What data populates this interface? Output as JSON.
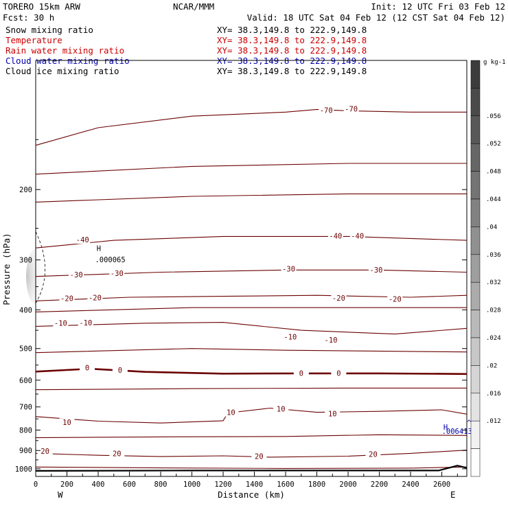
{
  "header": {
    "left_line1": "TORERO  15km ARW",
    "left_line2": "Fcst:  30 h",
    "center": "NCAR/MMM",
    "init": "Init: 12 UTC Fri 03 Feb 12",
    "valid": "Valid: 18 UTC Sat 04 Feb 12 (12 CST Sat 04 Feb 12)"
  },
  "fields": [
    {
      "name": "Snow mixing ratio",
      "xy": "XY=  38.3,149.8 to 222.9,149.8",
      "color": "#000000"
    },
    {
      "name": "Temperature",
      "xy": "XY=  38.3,149.8 to 222.9,149.8",
      "color": "#cc0000"
    },
    {
      "name": "Rain water mixing ratio",
      "xy": "XY=  38.3,149.8 to 222.9,149.8",
      "color": "#cc0000"
    },
    {
      "name": "Cloud water mixing ratio",
      "xy": "XY=  38.3,149.8 to 222.9,149.8",
      "color": "#0000aa"
    },
    {
      "name": "Cloud ice mixing ratio",
      "xy": "XY=  38.3,149.8 to 222.9,149.8",
      "color": "#000000"
    }
  ],
  "colors": {
    "contour": "#6b0000",
    "zero_contour": "#6b0000",
    "terrain": "#000000",
    "cloud_water": "#0000aa"
  },
  "chart_data": {
    "type": "contour",
    "xlabel": "Distance (km)",
    "ylabel": "Pressure (hPa)",
    "x_ticks": [
      0,
      200,
      400,
      600,
      800,
      1000,
      1200,
      1400,
      1600,
      1800,
      2000,
      2200,
      2400,
      2600
    ],
    "y_ticks": [
      200,
      300,
      400,
      500,
      600,
      700,
      800,
      900,
      1000
    ],
    "xlim": [
      0,
      2760
    ],
    "ylim": [
      1045,
      95
    ],
    "y_scale": "log",
    "x_end_labels": {
      "left": "W",
      "right": "E"
    },
    "temperature_contours": [
      {
        "label": "-70",
        "points": [
          [
            0,
            155
          ],
          [
            400,
            140
          ],
          [
            1000,
            131
          ],
          [
            1600,
            128
          ],
          [
            1800,
            126
          ],
          [
            2000,
            127
          ],
          [
            2400,
            128
          ],
          [
            2760,
            128
          ]
        ],
        "labels": [
          [
            1860,
            127,
            "-70"
          ],
          [
            2020,
            126,
            "-70"
          ]
        ]
      },
      {
        "label": "",
        "points": [
          [
            0,
            183
          ],
          [
            1000,
            175
          ],
          [
            2000,
            172
          ],
          [
            2760,
            172
          ]
        ],
        "labels": []
      },
      {
        "label": "",
        "points": [
          [
            0,
            215
          ],
          [
            1000,
            208
          ],
          [
            2000,
            205
          ],
          [
            2760,
            205
          ]
        ],
        "labels": []
      },
      {
        "label": "-40",
        "points": [
          [
            0,
            280
          ],
          [
            500,
            268
          ],
          [
            1200,
            262
          ],
          [
            2000,
            262
          ],
          [
            2760,
            268
          ]
        ],
        "labels": [
          [
            300,
            268,
            "-40"
          ],
          [
            1920,
            262,
            "-40"
          ],
          [
            2060,
            262,
            "-40"
          ]
        ]
      },
      {
        "label": "-30",
        "points": [
          [
            0,
            330
          ],
          [
            800,
            322
          ],
          [
            1600,
            318
          ],
          [
            2200,
            318
          ],
          [
            2760,
            322
          ]
        ],
        "labels": [
          [
            260,
            328,
            "-30"
          ],
          [
            520,
            325,
            "-30"
          ],
          [
            1620,
            317,
            "-30"
          ],
          [
            2180,
            319,
            "-30"
          ]
        ]
      },
      {
        "label": "-20",
        "points": [
          [
            0,
            380
          ],
          [
            600,
            372
          ],
          [
            1200,
            370
          ],
          [
            1800,
            368
          ],
          [
            2400,
            372
          ],
          [
            2760,
            368
          ]
        ],
        "labels": [
          [
            200,
            376,
            "-20"
          ],
          [
            380,
            374,
            "-20"
          ],
          [
            1940,
            375,
            "-20"
          ],
          [
            2300,
            377,
            "-20"
          ]
        ]
      },
      {
        "label": "",
        "points": [
          [
            0,
            405
          ],
          [
            1000,
            395
          ],
          [
            2000,
            395
          ],
          [
            2760,
            395
          ]
        ],
        "labels": []
      },
      {
        "label": "-10",
        "points": [
          [
            0,
            440
          ],
          [
            700,
            432
          ],
          [
            1200,
            430
          ],
          [
            1700,
            450
          ],
          [
            2300,
            460
          ],
          [
            2760,
            445
          ]
        ],
        "labels": [
          [
            160,
            433,
            "-10"
          ],
          [
            320,
            432,
            "-10"
          ],
          [
            1630,
            469,
            "-10"
          ],
          [
            1890,
            477,
            "-10"
          ]
        ]
      },
      {
        "label": "",
        "points": [
          [
            0,
            512
          ],
          [
            1000,
            500
          ],
          [
            1600,
            505
          ],
          [
            2760,
            510
          ]
        ],
        "labels": []
      },
      {
        "label": "0",
        "points": [
          [
            0,
            571
          ],
          [
            350,
            562
          ],
          [
            700,
            572
          ],
          [
            1200,
            578
          ],
          [
            1700,
            577
          ],
          [
            2200,
            577
          ],
          [
            2760,
            579
          ]
        ],
        "labels": [
          [
            330,
            560,
            "0"
          ],
          [
            540,
            568,
            "0"
          ],
          [
            1700,
            578,
            "0"
          ],
          [
            1940,
            578,
            "0"
          ]
        ]
      },
      {
        "label": "",
        "points": [
          [
            0,
            634
          ],
          [
            1000,
            630
          ],
          [
            2000,
            628
          ],
          [
            2760,
            628
          ]
        ],
        "labels": []
      },
      {
        "label": "10",
        "points": [
          [
            0,
            740
          ],
          [
            400,
            760
          ],
          [
            800,
            768
          ],
          [
            1200,
            758
          ],
          [
            1230,
            725
          ],
          [
            1500,
            705
          ],
          [
            1800,
            722
          ],
          [
            2200,
            718
          ],
          [
            2600,
            712
          ],
          [
            2760,
            730
          ]
        ],
        "labels": [
          [
            1250,
            725,
            "10"
          ],
          [
            1570,
            710,
            "10"
          ],
          [
            200,
            768,
            "10"
          ],
          [
            1900,
            731,
            "10"
          ]
        ]
      },
      {
        "label": "",
        "points": [
          [
            0,
            836
          ],
          [
            800,
            832
          ],
          [
            1600,
            830
          ],
          [
            2200,
            822
          ],
          [
            2760,
            825
          ]
        ],
        "labels": []
      },
      {
        "label": "20",
        "points": [
          [
            0,
            915
          ],
          [
            400,
            925
          ],
          [
            800,
            932
          ],
          [
            1200,
            928
          ],
          [
            1500,
            935
          ],
          [
            2000,
            930
          ],
          [
            2400,
            915
          ],
          [
            2760,
            898
          ]
        ],
        "labels": [
          [
            60,
            906,
            "20"
          ],
          [
            520,
            918,
            "20"
          ],
          [
            1430,
            934,
            "20"
          ],
          [
            2160,
            922,
            "20"
          ]
        ]
      },
      {
        "label": "",
        "points": [
          [
            0,
            990
          ],
          [
            800,
            995
          ],
          [
            1600,
            998
          ],
          [
            2400,
            996
          ],
          [
            2760,
            990
          ]
        ],
        "labels": []
      }
    ],
    "terrain": [
      [
        0,
        1012
      ],
      [
        1000,
        1010
      ],
      [
        2000,
        1010
      ],
      [
        2580,
        1010
      ],
      [
        2700,
        982
      ],
      [
        2760,
        995
      ]
    ],
    "annotations": [
      {
        "text": "H",
        "x": 390,
        "y": 285,
        "color": "#000000"
      },
      {
        "text": ".000065",
        "x": 380,
        "y": 304,
        "color": "#000000"
      },
      {
        "text": "H",
        "x": 2610,
        "y": 798,
        "color": "#0000aa"
      },
      {
        "text": ".006413",
        "x": 2600,
        "y": 817,
        "color": "#0000aa"
      },
      {
        "text": "^",
        "x": 2760,
        "y": 778,
        "color": "#0000aa"
      }
    ],
    "colorbar": {
      "units": "g kg-1",
      "ticks": [
        ".056",
        ".052",
        ".048",
        ".044",
        ".04",
        ".036",
        ".032",
        ".028",
        ".024",
        ".02",
        ".016",
        ".012"
      ]
    }
  }
}
